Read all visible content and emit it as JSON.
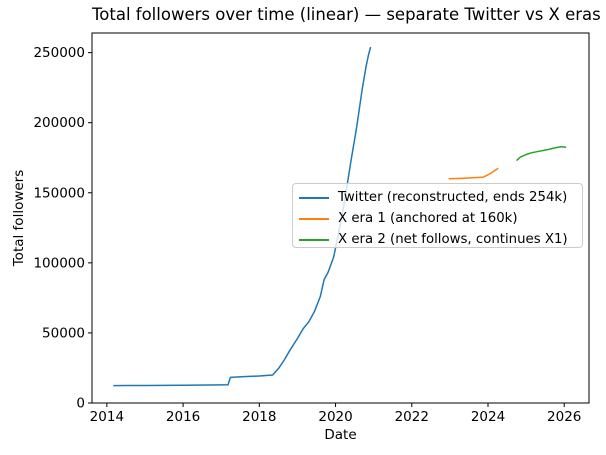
{
  "chart_data": {
    "type": "line",
    "title": "Total followers over time (linear) — separate Twitter vs X eras",
    "xlabel": "Date",
    "ylabel": "Total followers",
    "xlim": [
      2013.61,
      2026.65
    ],
    "ylim": [
      0,
      264000
    ],
    "xticks": [
      2014,
      2016,
      2018,
      2020,
      2022,
      2024,
      2026
    ],
    "yticks": [
      0,
      50000,
      100000,
      150000,
      200000,
      250000
    ],
    "grid": false,
    "legend_position": "inside center-right",
    "series": [
      {
        "name": "Twitter (reconstructed, ends 254k)",
        "color": "#1f77b4",
        "x": [
          2014.17,
          2015.0,
          2016.0,
          2017.0,
          2017.18,
          2017.24,
          2017.6,
          2018.0,
          2018.35,
          2018.5,
          2018.65,
          2018.8,
          2019.0,
          2019.15,
          2019.3,
          2019.45,
          2019.6,
          2019.7,
          2019.8,
          2019.95,
          2020.1,
          2020.25,
          2020.4,
          2020.55,
          2020.7,
          2020.8,
          2020.87,
          2020.92
        ],
        "y": [
          12400,
          12500,
          12700,
          12900,
          13000,
          18300,
          18800,
          19300,
          20000,
          24500,
          30500,
          37500,
          46000,
          53000,
          58000,
          65500,
          76000,
          88000,
          93000,
          104000,
          124000,
          146000,
          172000,
          196000,
          224000,
          240000,
          249000,
          254000
        ]
      },
      {
        "name": "X era 1 (anchored at 160k)",
        "color": "#ff7f0e",
        "x": [
          2022.97,
          2023.3,
          2023.6,
          2023.88,
          2024.05,
          2024.27
        ],
        "y": [
          160000,
          160300,
          160700,
          161200,
          163500,
          167500
        ]
      },
      {
        "name": "X era 2 (net follows, continues X1)",
        "color": "#2ca02c",
        "x": [
          2024.75,
          2024.85,
          2025.0,
          2025.15,
          2025.3,
          2025.5,
          2025.65,
          2025.8,
          2025.92,
          2026.05
        ],
        "y": [
          173000,
          175500,
          177300,
          178600,
          179400,
          180400,
          181300,
          182300,
          182800,
          182500
        ]
      }
    ]
  }
}
